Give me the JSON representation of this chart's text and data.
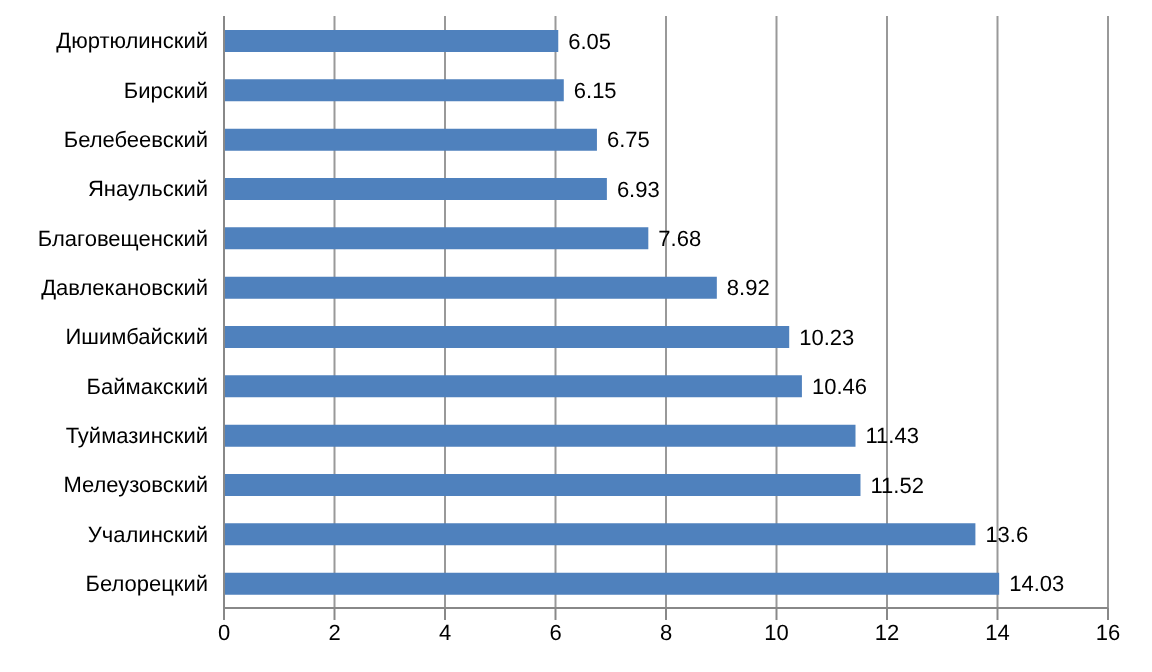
{
  "chart_data": {
    "type": "bar",
    "orientation": "horizontal",
    "categories": [
      "Дюртюлинский",
      "Бирский",
      "Белебеевский",
      "Янаульский",
      "Благовещенский",
      "Давлекановский",
      "Ишимбайский",
      "Баймакский",
      "Туймазинский",
      "Мелеузовский",
      "Учалинский",
      "Белорецкий"
    ],
    "values": [
      6.05,
      6.15,
      6.75,
      6.93,
      7.68,
      8.92,
      10.23,
      10.46,
      11.43,
      11.52,
      13.6,
      14.03
    ],
    "color": "#4f81bd",
    "xlim": [
      0,
      16
    ],
    "xticks": [
      0,
      2,
      4,
      6,
      8,
      10,
      12,
      14,
      16
    ],
    "grid": "x",
    "data_labels": true,
    "legend": false
  }
}
